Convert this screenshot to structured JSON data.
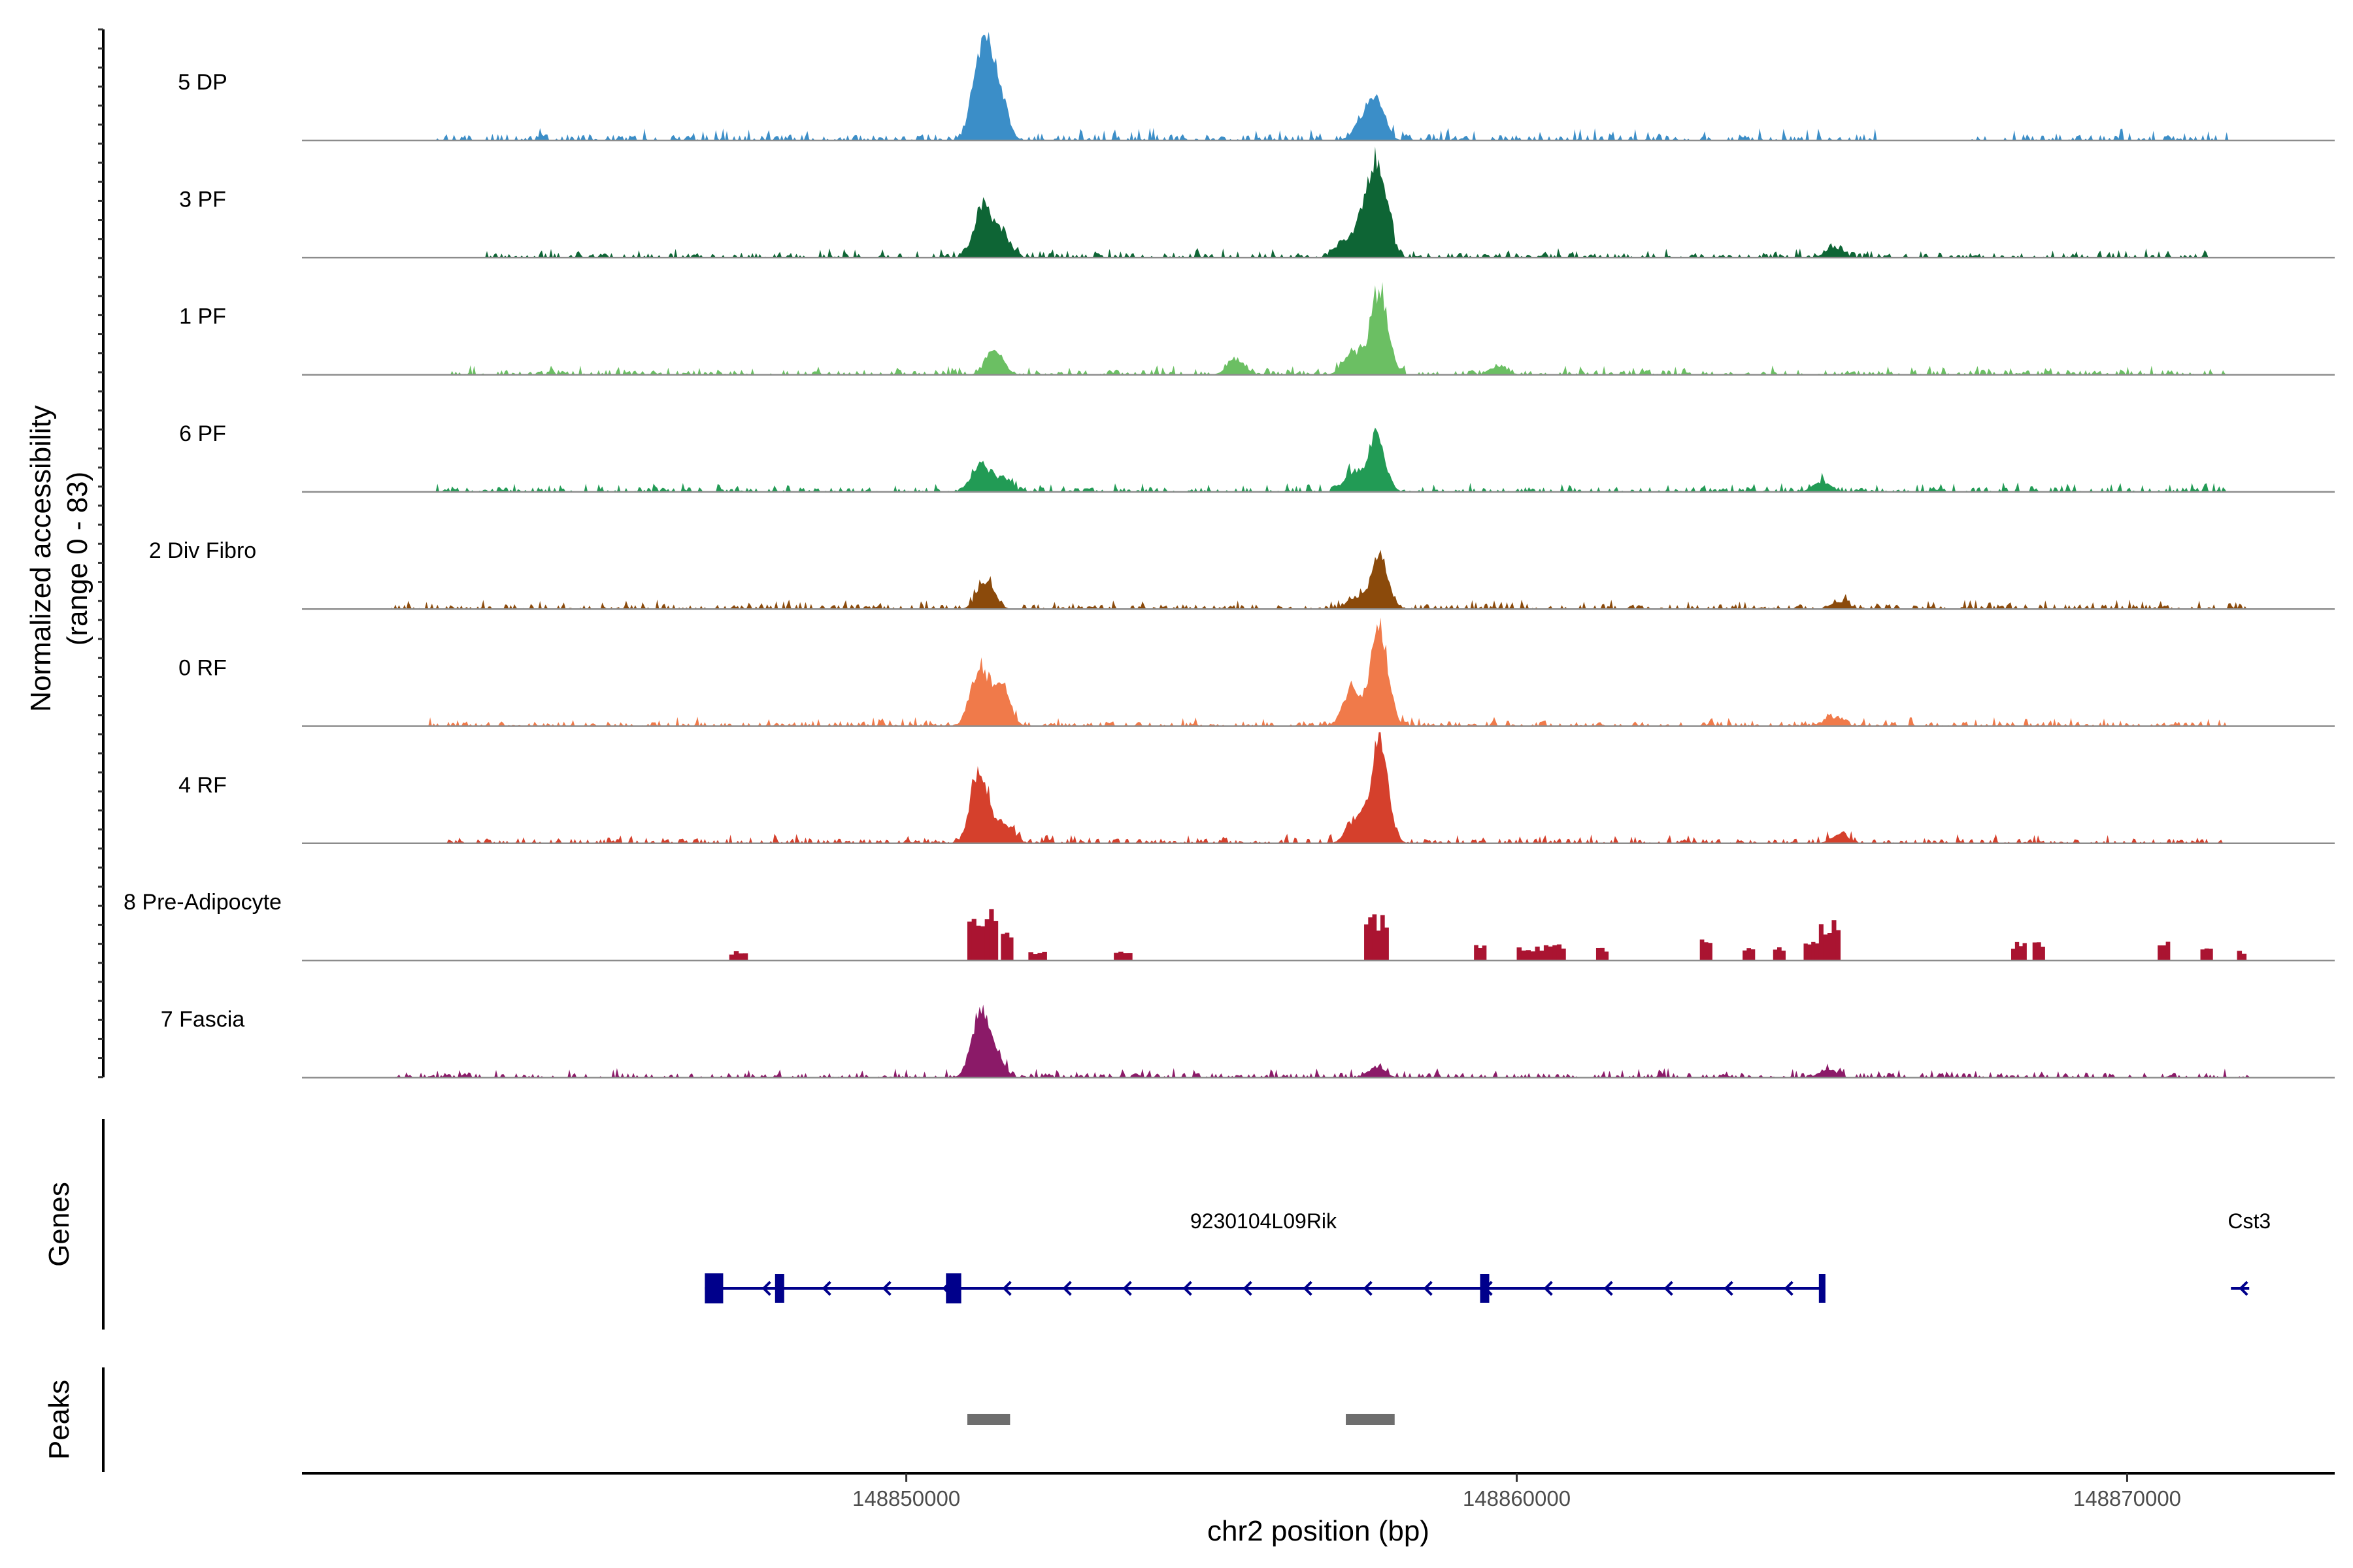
{
  "chart_data": {
    "type": "area",
    "title": "",
    "y_axis_title": [
      "Normalized accessibility",
      "(range 0 - 83)"
    ],
    "y_range": [
      0,
      83
    ],
    "x_axis": {
      "label": "chr2 position (bp)",
      "range": [
        148840100,
        148873400
      ],
      "ticks": [
        148850000,
        148860000,
        148870000
      ],
      "tick_labels": [
        "148850000",
        "148860000",
        "148870000"
      ]
    },
    "tracks": [
      {
        "label": "5 DP",
        "color": "#3b8ec8",
        "peaks": [
          [
            148851200,
            52
          ],
          [
            148851500,
            32
          ],
          [
            148851350,
            24
          ],
          [
            148857700,
            30
          ],
          [
            148857450,
            12
          ]
        ],
        "noise_regions": [
          [
            148842300,
            148866000
          ],
          [
            148867400,
            148871700
          ]
        ],
        "noise_level": 4
      },
      {
        "label": "3 PF",
        "color": "#0e6535",
        "peaks": [
          [
            148851250,
            40
          ],
          [
            148851550,
            18
          ],
          [
            148857750,
            70
          ],
          [
            148857500,
            32
          ],
          [
            148857150,
            12
          ],
          [
            148865200,
            8
          ]
        ],
        "noise_regions": [
          [
            148843100,
            148871300
          ]
        ],
        "noise_level": 3
      },
      {
        "label": "1 PF",
        "color": "#6bbf63",
        "peaks": [
          [
            148851450,
            20
          ],
          [
            148855400,
            13
          ],
          [
            148857750,
            68
          ],
          [
            148857300,
            18
          ],
          [
            148859700,
            7
          ]
        ],
        "noise_regions": [
          [
            148842500,
            148871600
          ]
        ],
        "noise_level": 3
      },
      {
        "label": "6 PF",
        "color": "#229b55",
        "peaks": [
          [
            148851200,
            20
          ],
          [
            148851550,
            11
          ],
          [
            148857700,
            44
          ],
          [
            148857300,
            14
          ],
          [
            148865000,
            8
          ]
        ],
        "noise_regions": [
          [
            148842300,
            148871600
          ]
        ],
        "noise_level": 3
      },
      {
        "label": "2 Div Fibro",
        "color": "#8b4a0b",
        "peaks": [
          [
            148851300,
            22
          ],
          [
            148857750,
            40
          ],
          [
            148857350,
            9
          ],
          [
            148865300,
            6
          ]
        ],
        "noise_regions": [
          [
            148841500,
            148872000
          ]
        ],
        "noise_level": 3
      },
      {
        "label": "0 RF",
        "color": "#f07a4a",
        "peaks": [
          [
            148851200,
            46
          ],
          [
            148851550,
            30
          ],
          [
            148857750,
            78
          ],
          [
            148857300,
            30
          ],
          [
            148865200,
            7
          ]
        ],
        "noise_regions": [
          [
            148842200,
            148871600
          ]
        ],
        "noise_level": 3
      },
      {
        "label": "4 RF",
        "color": "#d5402c",
        "peaks": [
          [
            148851200,
            58
          ],
          [
            148851600,
            16
          ],
          [
            148857750,
            82
          ],
          [
            148857350,
            18
          ],
          [
            148865300,
            7
          ]
        ],
        "noise_regions": [
          [
            148842500,
            148871700
          ]
        ],
        "noise_level": 3
      },
      {
        "label": "8 Pre-Adipocyte",
        "color": "#aa1431",
        "blocks": [
          [
            148847100,
            148847400,
            7
          ],
          [
            148851000,
            148851500,
            40
          ],
          [
            148851550,
            148851750,
            26
          ],
          [
            148852000,
            148852300,
            8
          ],
          [
            148853400,
            148853700,
            7
          ],
          [
            148857500,
            148857900,
            36
          ],
          [
            148859300,
            148859500,
            12
          ],
          [
            148860000,
            148860300,
            10
          ],
          [
            148860300,
            148860800,
            12
          ],
          [
            148861300,
            148861500,
            10
          ],
          [
            148863000,
            148863200,
            18
          ],
          [
            148863700,
            148863900,
            12
          ],
          [
            148864200,
            148864400,
            10
          ],
          [
            148864700,
            148864950,
            14
          ],
          [
            148864950,
            148865300,
            32
          ],
          [
            148868100,
            148868350,
            14
          ],
          [
            148868450,
            148868650,
            14
          ],
          [
            148870500,
            148870700,
            16
          ],
          [
            148871200,
            148871400,
            12
          ],
          [
            148871800,
            148871950,
            8
          ]
        ]
      },
      {
        "label": "7 Fascia",
        "color": "#8b1a68",
        "peaks": [
          [
            148851200,
            48
          ],
          [
            148851450,
            18
          ],
          [
            148857700,
            8
          ],
          [
            148865100,
            7
          ]
        ],
        "noise_regions": [
          [
            148841500,
            148872000
          ]
        ],
        "noise_level": 3
      }
    ],
    "genes": [
      {
        "name": "9230104L09Rik",
        "strand": "-",
        "start": 148846700,
        "end": 148865000,
        "exons": [
          [
            148846700,
            148847000
          ],
          [
            148847850,
            148848000
          ],
          [
            148850650,
            148850900
          ],
          [
            148859400,
            148859550
          ],
          [
            148864950,
            148865050
          ]
        ]
      },
      {
        "name": "Cst3",
        "strand": "-",
        "start": 148871700,
        "end": 148872000,
        "exons": []
      }
    ],
    "peaks_track": [
      [
        148851000,
        148851700
      ],
      [
        148857200,
        148858000
      ]
    ],
    "panel_labels": {
      "genes": "Genes",
      "peaks": "Peaks"
    }
  }
}
